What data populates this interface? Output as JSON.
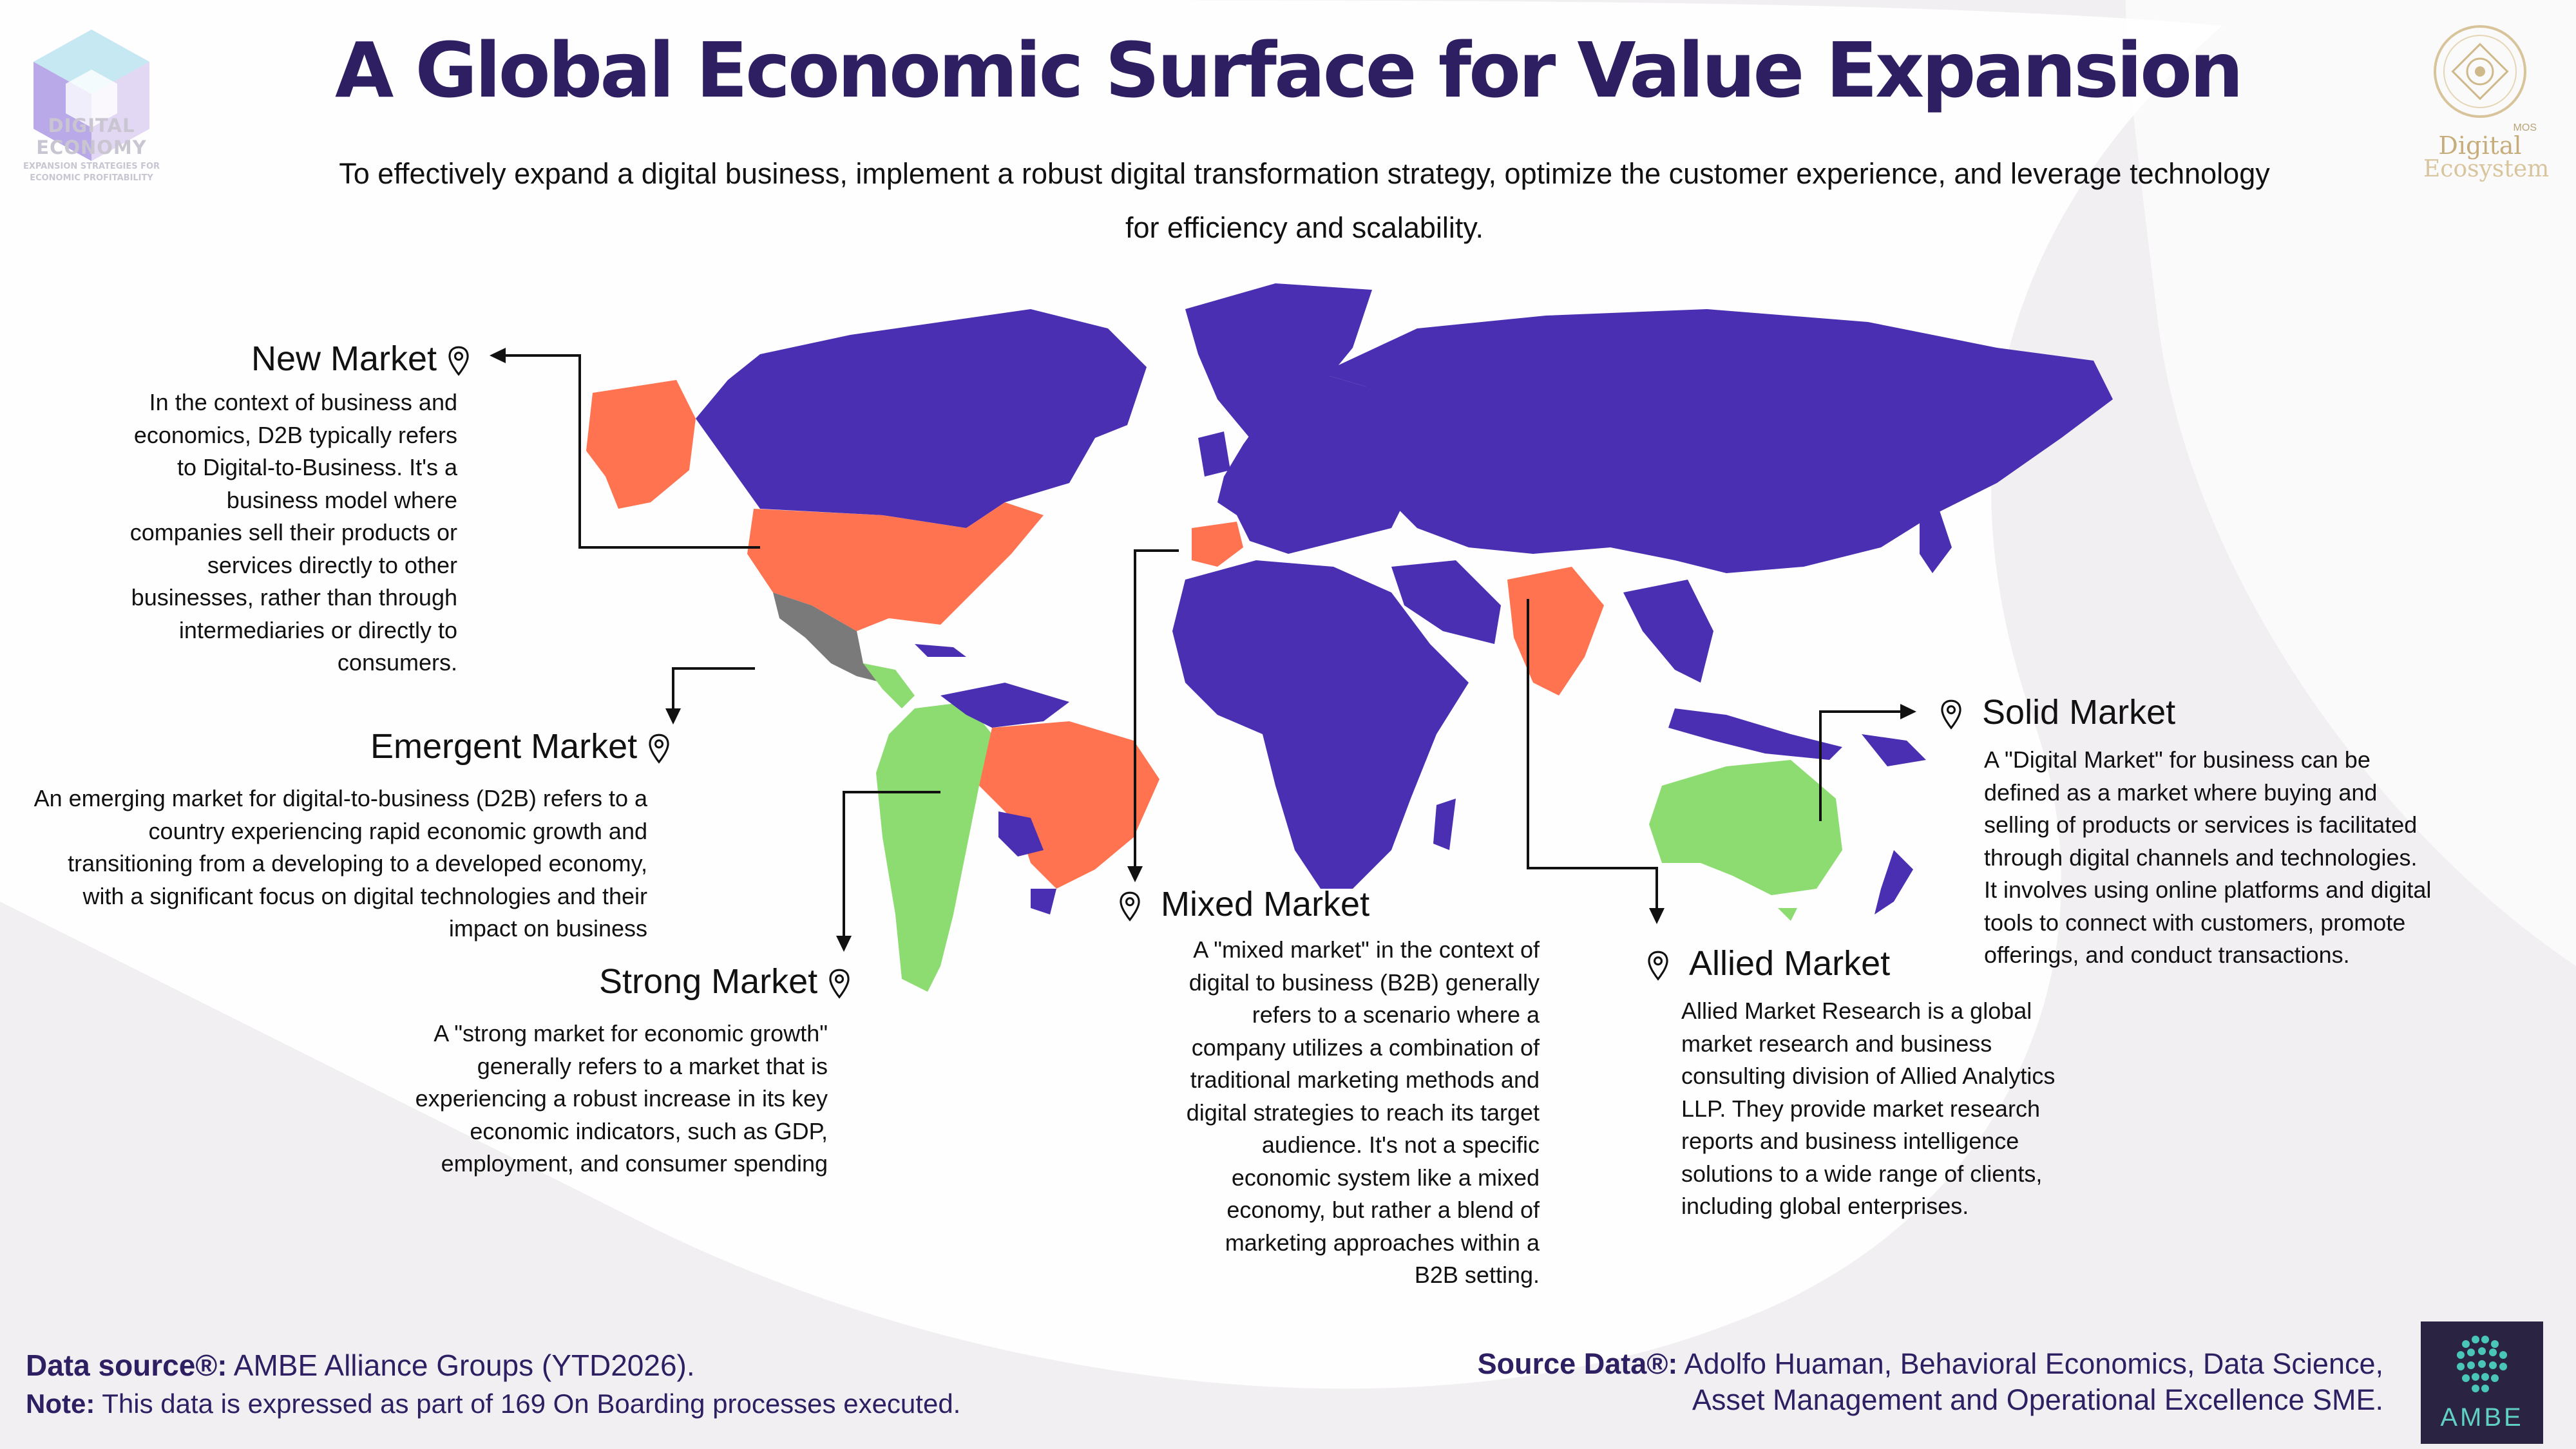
{
  "title": "A Global Economic Surface for Value Expansion",
  "subtitle": "To effectively expand a digital business, implement a robust digital transformation strategy, optimize the customer experience, and leverage technology for efficiency and scalability.",
  "logo_left": {
    "name": "DIGITAL ECONOMY",
    "tagline": "EXPANSION STRATEGIES FOR ECONOMIC PROFITABILITY"
  },
  "logo_right": {
    "badge": "MOS",
    "line1": "Digital",
    "line2": "Ecosystem"
  },
  "markets": {
    "new": {
      "title": "New Market",
      "desc": "In the context of business and economics, D2B typically refers to Digital-to-Business. It's a business model where companies sell their products or services directly to other businesses, rather than through intermediaries or directly to consumers."
    },
    "emergent": {
      "title": "Emergent Market",
      "desc": "An emerging market for digital-to-business (D2B) refers to a country experiencing rapid economic growth and transitioning from a developing to a developed economy, with a significant focus on digital technologies and their impact on business"
    },
    "strong": {
      "title": "Strong Market",
      "desc": "A \"strong market for economic growth\" generally refers to a market that is experiencing a robust increase in its key economic indicators, such as GDP, employment, and consumer spending"
    },
    "mixed": {
      "title": "Mixed Market",
      "desc": "A \"mixed market\" in the context of digital to business (B2B) generally refers to a scenario where a company utilizes a combination of traditional marketing methods and digital strategies to reach its target audience. It's not a specific economic system like a mixed economy, but rather a blend of marketing approaches within a B2B setting."
    },
    "allied": {
      "title": "Allied Market",
      "desc": "Allied Market Research is a global market research and business consulting division of Allied Analytics LLP. They provide market research reports and business intelligence solutions to a wide range of clients, including global enterprises."
    },
    "solid": {
      "title": "Solid Market",
      "desc": "A \"Digital Market\" for business can be defined as a market where buying and selling of products or services is facilitated through digital channels and technologies. It involves using online platforms and digital tools to connect with customers, promote offerings, and conduct transactions."
    }
  },
  "colors": {
    "base": "#4b2fb3",
    "new": "#ff7350",
    "strong": "#8ddc72",
    "emergent": "#7a7a7a",
    "title": "#2e1f63"
  },
  "footer": {
    "data_source_label": "Data source®:",
    "data_source_value": "AMBE Alliance Groups (YTD2026).",
    "note_label": "Note:",
    "note_value": "This data is expressed as part of 169 On Boarding processes executed.",
    "source_data_label": "Source Data®:",
    "source_data_value_1": "Adolfo Huaman, Behavioral Economics, Data Science,",
    "source_data_value_2": "Asset Management and Operational Excellence SME."
  },
  "ambe_logo_text": "AMBE"
}
